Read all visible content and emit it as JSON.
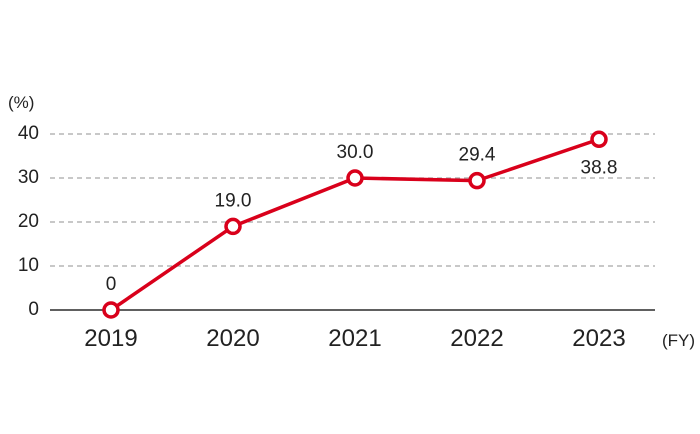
{
  "chart_data": {
    "type": "line",
    "title": "",
    "y_unit_label": "(%)",
    "x_unit_label": "(FY)",
    "categories": [
      "2019",
      "2020",
      "2021",
      "2022",
      "2023"
    ],
    "series": [
      {
        "values": [
          0,
          19.0,
          30.0,
          29.4,
          38.8
        ],
        "labels": [
          "0",
          "19.0",
          "30.0",
          "29.4",
          "38.8"
        ],
        "color": "#d9001b"
      }
    ],
    "ylim": [
      0,
      40
    ],
    "yticks": [
      "0",
      "10",
      "20",
      "30",
      "40"
    ],
    "grid": true,
    "gridline_style": "dashed",
    "legend": "none"
  }
}
